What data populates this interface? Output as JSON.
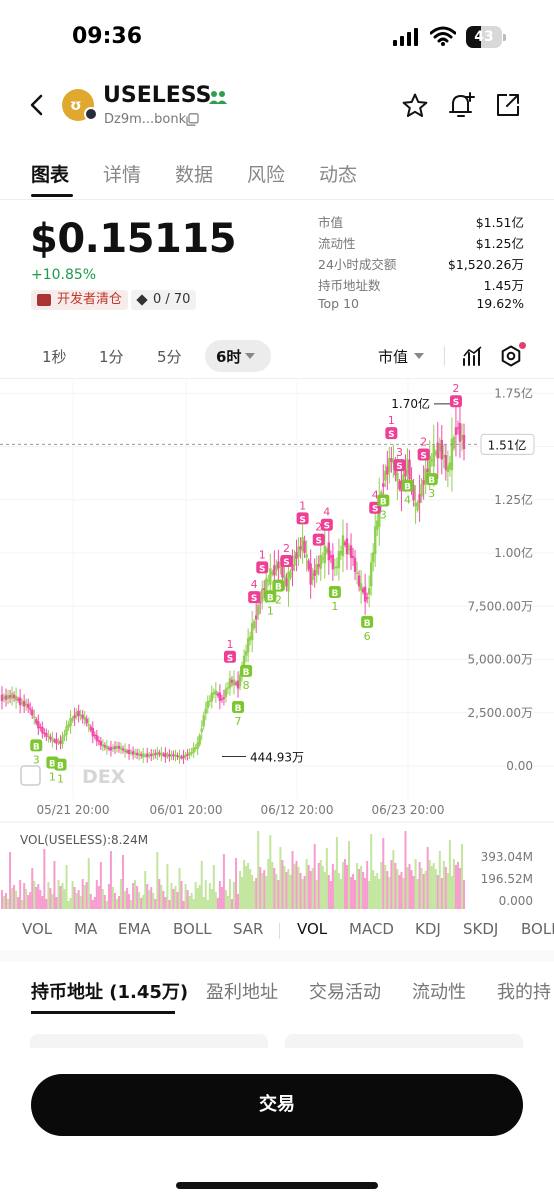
{
  "status_bar": {
    "time": "09:36",
    "battery": "43",
    "battery_level": 0.43
  },
  "header": {
    "token_name": "USELESS",
    "contract": "Dz9m...bonk",
    "logo_text": "ʊ"
  },
  "tabs": [
    {
      "label": "图表",
      "active": true
    },
    {
      "label": "详情",
      "active": false
    },
    {
      "label": "数据",
      "active": false
    },
    {
      "label": "风险",
      "active": false
    },
    {
      "label": "动态",
      "active": false
    }
  ],
  "price": {
    "value": "$0.15115",
    "change": "+10.85%",
    "dev_badge": "开发者清仓",
    "count_badge": "0 / 70"
  },
  "stats": [
    {
      "label": "市值",
      "value": "$1.51亿"
    },
    {
      "label": "流动性",
      "value": "$1.25亿"
    },
    {
      "label": "24小时成交额",
      "value": "$1,520.26万"
    },
    {
      "label": "持币地址数",
      "value": "1.45万"
    },
    {
      "label": "Top 10",
      "value": "19.62%"
    }
  ],
  "intervals": {
    "items": [
      "1秒",
      "1分",
      "5分"
    ],
    "active": "6时",
    "mcap_label": "市值"
  },
  "colors": {
    "up": "#1d9a4a",
    "candle_up": "#8fd14f",
    "candle_down": "#f24ba7",
    "buy": "#7cc62e",
    "sell": "#ee3f95"
  },
  "chart_data": {
    "type": "candlestick",
    "y_ticks": [
      "1.75亿",
      "1.50亿",
      "1.25亿",
      "1.00亿",
      "7,500.00万",
      "5,000.00万",
      "2,500.00万",
      "0.00"
    ],
    "x_ticks": [
      "05/21 20:00",
      "06/01 20:00",
      "06/12 20:00",
      "06/23 20:00"
    ],
    "current_label": "1.51亿",
    "high_label": "1.70亿",
    "low_label": "444.93万",
    "watermark": "DEX",
    "volume_title": "VOL(USELESS):8.24M",
    "volume_ticks": [
      "393.04M",
      "196.52M",
      "0.000"
    ],
    "close_series": [
      0.32,
      0.33,
      0.3,
      0.28,
      0.2,
      0.15,
      0.12,
      0.11,
      0.2,
      0.25,
      0.22,
      0.15,
      0.1,
      0.08,
      0.09,
      0.07,
      0.06,
      0.05,
      0.05,
      0.06,
      0.05,
      0.05,
      0.04,
      0.06,
      0.1,
      0.28,
      0.35,
      0.31,
      0.4,
      0.38,
      0.55,
      0.68,
      0.82,
      0.9,
      0.95,
      0.85,
      0.98,
      1.05,
      0.88,
      0.95,
      1.02,
      0.92,
      1.05,
      1.0,
      0.85,
      0.78,
      1.1,
      1.35,
      1.45,
      1.3,
      1.42,
      1.2,
      1.35,
      1.45,
      1.5,
      1.38,
      1.6,
      1.51
    ],
    "markers": [
      {
        "kind": "B",
        "count": "3",
        "idx": 4
      },
      {
        "kind": "B",
        "count": "1",
        "idx": 6
      },
      {
        "kind": "B",
        "count": "1",
        "idx": 7
      },
      {
        "kind": "S",
        "count": "1",
        "idx": 28
      },
      {
        "kind": "B",
        "count": "7",
        "idx": 29
      },
      {
        "kind": "B",
        "count": "8",
        "idx": 30
      },
      {
        "kind": "S",
        "count": "4",
        "idx": 31
      },
      {
        "kind": "S",
        "count": "1",
        "idx": 32
      },
      {
        "kind": "B",
        "count": "1",
        "idx": 33
      },
      {
        "kind": "B",
        "count": "2",
        "idx": 34
      },
      {
        "kind": "S",
        "count": "2",
        "idx": 35
      },
      {
        "kind": "S",
        "count": "1",
        "idx": 37
      },
      {
        "kind": "S",
        "count": "2",
        "idx": 39
      },
      {
        "kind": "S",
        "count": "4",
        "idx": 40
      },
      {
        "kind": "B",
        "count": "1",
        "idx": 41
      },
      {
        "kind": "B",
        "count": "6",
        "idx": 45
      },
      {
        "kind": "S",
        "count": "4",
        "idx": 46
      },
      {
        "kind": "B",
        "count": "3",
        "idx": 47
      },
      {
        "kind": "S",
        "count": "1",
        "idx": 48
      },
      {
        "kind": "S",
        "count": "3",
        "idx": 49
      },
      {
        "kind": "B",
        "count": "4",
        "idx": 50
      },
      {
        "kind": "S",
        "count": "2",
        "idx": 52
      },
      {
        "kind": "B",
        "count": "3",
        "idx": 53
      },
      {
        "kind": "S",
        "count": "2",
        "idx": 56
      }
    ]
  },
  "indicators": {
    "items": [
      "VOL",
      "MA",
      "EMA",
      "BOLL",
      "SAR",
      "VOL",
      "MACD",
      "KDJ",
      "SKDJ",
      "BOLL"
    ],
    "active": "VOL"
  },
  "bottom_tabs": [
    {
      "label": "持币地址 (1.45万)",
      "active": true
    },
    {
      "label": "盈利地址",
      "active": false
    },
    {
      "label": "交易活动",
      "active": false
    },
    {
      "label": "流动性",
      "active": false
    },
    {
      "label": "我的持",
      "active": false
    }
  ],
  "trade_button": "交易"
}
